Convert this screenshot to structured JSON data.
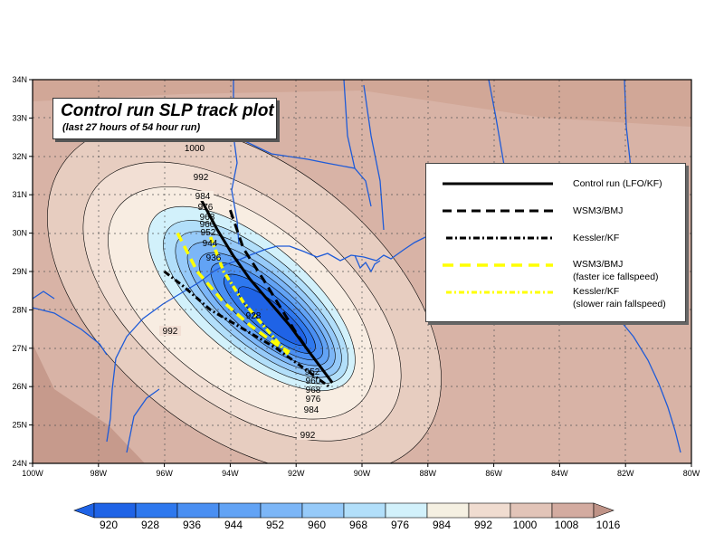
{
  "title": "Control run SLP track plot",
  "subtitle": "(last 27 hours of 54 hour run)",
  "legend": [
    {
      "label": "Control run (LFO/KF)",
      "note": "",
      "color": "#000000",
      "style": "solid"
    },
    {
      "label": "WSM3/BMJ",
      "note": "",
      "color": "#000000",
      "style": "dashed"
    },
    {
      "label": "Kessler/KF",
      "note": "",
      "color": "#000000",
      "style": "dashdot"
    },
    {
      "label": "WSM3/BMJ",
      "note": "(faster ice fallspeed)",
      "color": "#ffff00",
      "style": "dashed"
    },
    {
      "label": "Kessler/KF",
      "note": "(slower rain fallspeed)",
      "color": "#ffff00",
      "style": "dashdot"
    }
  ],
  "colorbar": {
    "labels": [
      "920",
      "928",
      "936",
      "944",
      "952",
      "960",
      "968",
      "976",
      "984",
      "992",
      "1000",
      "1008",
      "1016"
    ],
    "colors": [
      "#1f63e6",
      "#2e78ee",
      "#4a8ff2",
      "#62a3f5",
      "#7cb6f7",
      "#96caf9",
      "#b2dffa",
      "#d2f1fb",
      "#f5f0e2",
      "#f0dcd0",
      "#e2c4b8",
      "#d3aba0",
      "#bf9387"
    ]
  },
  "chart_data": {
    "type": "map",
    "title": "Control run SLP track plot",
    "subtitle": "(last 27 hours of 54 hour run)",
    "x_axis": {
      "range": [
        -100,
        -80
      ],
      "ticks": [
        "100W",
        "98W",
        "96W",
        "94W",
        "92W",
        "90W",
        "88W",
        "86W",
        "84W",
        "82W",
        "80W"
      ]
    },
    "y_axis": {
      "range": [
        24,
        34
      ],
      "ticks": [
        "24N",
        "25N",
        "26N",
        "27N",
        "28N",
        "29N",
        "30N",
        "31N",
        "32N",
        "33N",
        "34N"
      ]
    },
    "contour_variable": "sea level pressure (hPa)",
    "contour_interval": 4,
    "contour_labels": [
      "1000",
      "992",
      "992",
      "984",
      "976",
      "968",
      "960",
      "952",
      "944",
      "936",
      "928",
      "984",
      "976",
      "968",
      "960",
      "952",
      "992"
    ],
    "series": [
      {
        "name": "Control run (LFO/KF)",
        "color": "#000000",
        "style": "solid",
        "points": [
          [
            -94.9,
            30.9
          ],
          [
            -94.4,
            30.1
          ],
          [
            -93.9,
            29.4
          ],
          [
            -93.4,
            28.8
          ],
          [
            -92.8,
            28.2
          ],
          [
            -92.2,
            27.6
          ],
          [
            -91.6,
            26.9
          ],
          [
            -90.9,
            26.1
          ]
        ]
      },
      {
        "name": "WSM3/BMJ",
        "color": "#000000",
        "style": "dashed",
        "points": [
          [
            -94.0,
            30.6
          ],
          [
            -93.6,
            29.6
          ],
          [
            -93.0,
            28.8
          ],
          [
            -92.5,
            28.1
          ],
          [
            -92.0,
            27.4
          ],
          [
            -91.6,
            26.9
          ]
        ]
      },
      {
        "name": "Kessler/KF",
        "color": "#000000",
        "style": "dashdot",
        "points": [
          [
            -96.0,
            29.0
          ],
          [
            -95.4,
            28.6
          ],
          [
            -94.6,
            28.0
          ],
          [
            -93.6,
            27.5
          ],
          [
            -92.6,
            27.0
          ],
          [
            -91.8,
            26.5
          ],
          [
            -91.0,
            26.0
          ]
        ]
      },
      {
        "name": "WSM3/BMJ (faster ice fallspeed)",
        "color": "#ffff00",
        "style": "dashed",
        "points": [
          [
            -95.6,
            30.0
          ],
          [
            -95.0,
            29.0
          ],
          [
            -94.2,
            28.2
          ],
          [
            -93.4,
            27.6
          ],
          [
            -92.6,
            27.1
          ],
          [
            -92.2,
            26.9
          ]
        ]
      },
      {
        "name": "Kessler/KF (slower rain fallspeed)",
        "color": "#ffff00",
        "style": "dashdot",
        "points": [
          [
            -94.6,
            29.9
          ],
          [
            -94.2,
            29.0
          ],
          [
            -93.6,
            28.2
          ],
          [
            -92.8,
            27.4
          ],
          [
            -92.2,
            26.8
          ]
        ]
      }
    ]
  }
}
